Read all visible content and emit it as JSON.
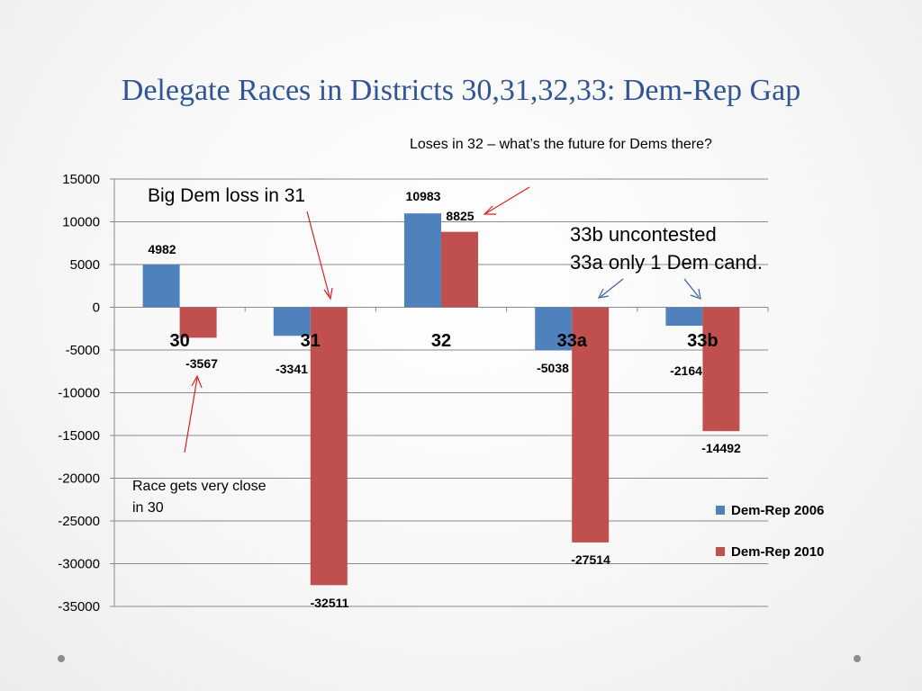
{
  "title": "Delegate Races in Districts 30,31,32,33: Dem-Rep Gap",
  "chart_data": {
    "type": "bar",
    "categories": [
      "30",
      "31",
      "32",
      "33a",
      "33b"
    ],
    "series": [
      {
        "name": "Dem-Rep 2006",
        "values": [
          4982,
          -3341,
          10983,
          -5038,
          -2164
        ],
        "color": "#4f81bd"
      },
      {
        "name": "Dem-Rep 2010",
        "values": [
          -3567,
          -32511,
          8825,
          -27514,
          -14492
        ],
        "color": "#c0504d"
      }
    ],
    "ylim": [
      -35000,
      15000
    ],
    "yticks": [
      15000,
      10000,
      5000,
      0,
      -5000,
      -10000,
      -15000,
      -20000,
      -25000,
      -30000,
      -35000
    ],
    "grid": true,
    "legend": "right",
    "data_labels": [
      [
        "4982",
        "-3567"
      ],
      [
        "-3341",
        "-32511"
      ],
      [
        "10983",
        "8825"
      ],
      [
        "-5038",
        "-27514"
      ],
      [
        "-2164",
        "-14492"
      ]
    ],
    "annotations": {
      "big_loss": "Big Dem loss in 31",
      "loses_32": "Loses in 32 – what’s the future for Dems there?",
      "uncontested_1": "33b uncontested",
      "uncontested_2": "33a only 1 Dem cand.",
      "close_30": "Race gets very close in 30"
    }
  }
}
